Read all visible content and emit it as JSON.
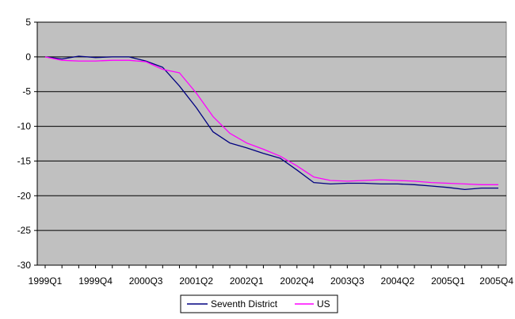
{
  "chart_data": {
    "type": "line",
    "title": "",
    "xlabel": "",
    "ylabel": "",
    "ylim": [
      -30,
      5
    ],
    "yticks": [
      5,
      0,
      -5,
      -10,
      -15,
      -20,
      -25,
      -30
    ],
    "grid": true,
    "legend_position": "bottom",
    "plot_background": "#c0c0c0",
    "x": [
      "1999Q1",
      "1999Q2",
      "1999Q3",
      "1999Q4",
      "2000Q1",
      "2000Q2",
      "2000Q3",
      "2000Q4",
      "2001Q1",
      "2001Q2",
      "2001Q3",
      "2001Q4",
      "2002Q1",
      "2002Q2",
      "2002Q3",
      "2002Q4",
      "2003Q1",
      "2003Q2",
      "2003Q3",
      "2003Q4",
      "2004Q1",
      "2004Q2",
      "2004Q3",
      "2004Q4",
      "2005Q1",
      "2005Q2",
      "2005Q3",
      "2005Q4"
    ],
    "xtick_labels": [
      "1999Q1",
      "1999Q4",
      "2000Q3",
      "2001Q2",
      "2002Q1",
      "2002Q4",
      "2003Q3",
      "2004Q2",
      "2005Q1",
      "2005Q4"
    ],
    "series": [
      {
        "name": "Seventh District",
        "color": "#000080",
        "values": [
          0,
          -0.3,
          0.1,
          -0.1,
          0,
          0,
          -0.6,
          -1.5,
          -4.2,
          -7.3,
          -10.8,
          -12.4,
          -13.1,
          -13.9,
          -14.6,
          -16.3,
          -18.1,
          -18.3,
          -18.2,
          -18.2,
          -18.3,
          -18.3,
          -18.4,
          -18.6,
          -18.8,
          -19.1,
          -18.9,
          -18.9
        ]
      },
      {
        "name": "US",
        "color": "#ff00ff",
        "values": [
          0,
          -0.5,
          -0.6,
          -0.6,
          -0.5,
          -0.5,
          -0.7,
          -1.8,
          -2.3,
          -5.2,
          -8.6,
          -11.0,
          -12.4,
          -13.3,
          -14.3,
          -15.7,
          -17.3,
          -17.8,
          -17.9,
          -17.8,
          -17.7,
          -17.8,
          -17.9,
          -18.1,
          -18.2,
          -18.3,
          -18.4,
          -18.4
        ]
      }
    ]
  }
}
